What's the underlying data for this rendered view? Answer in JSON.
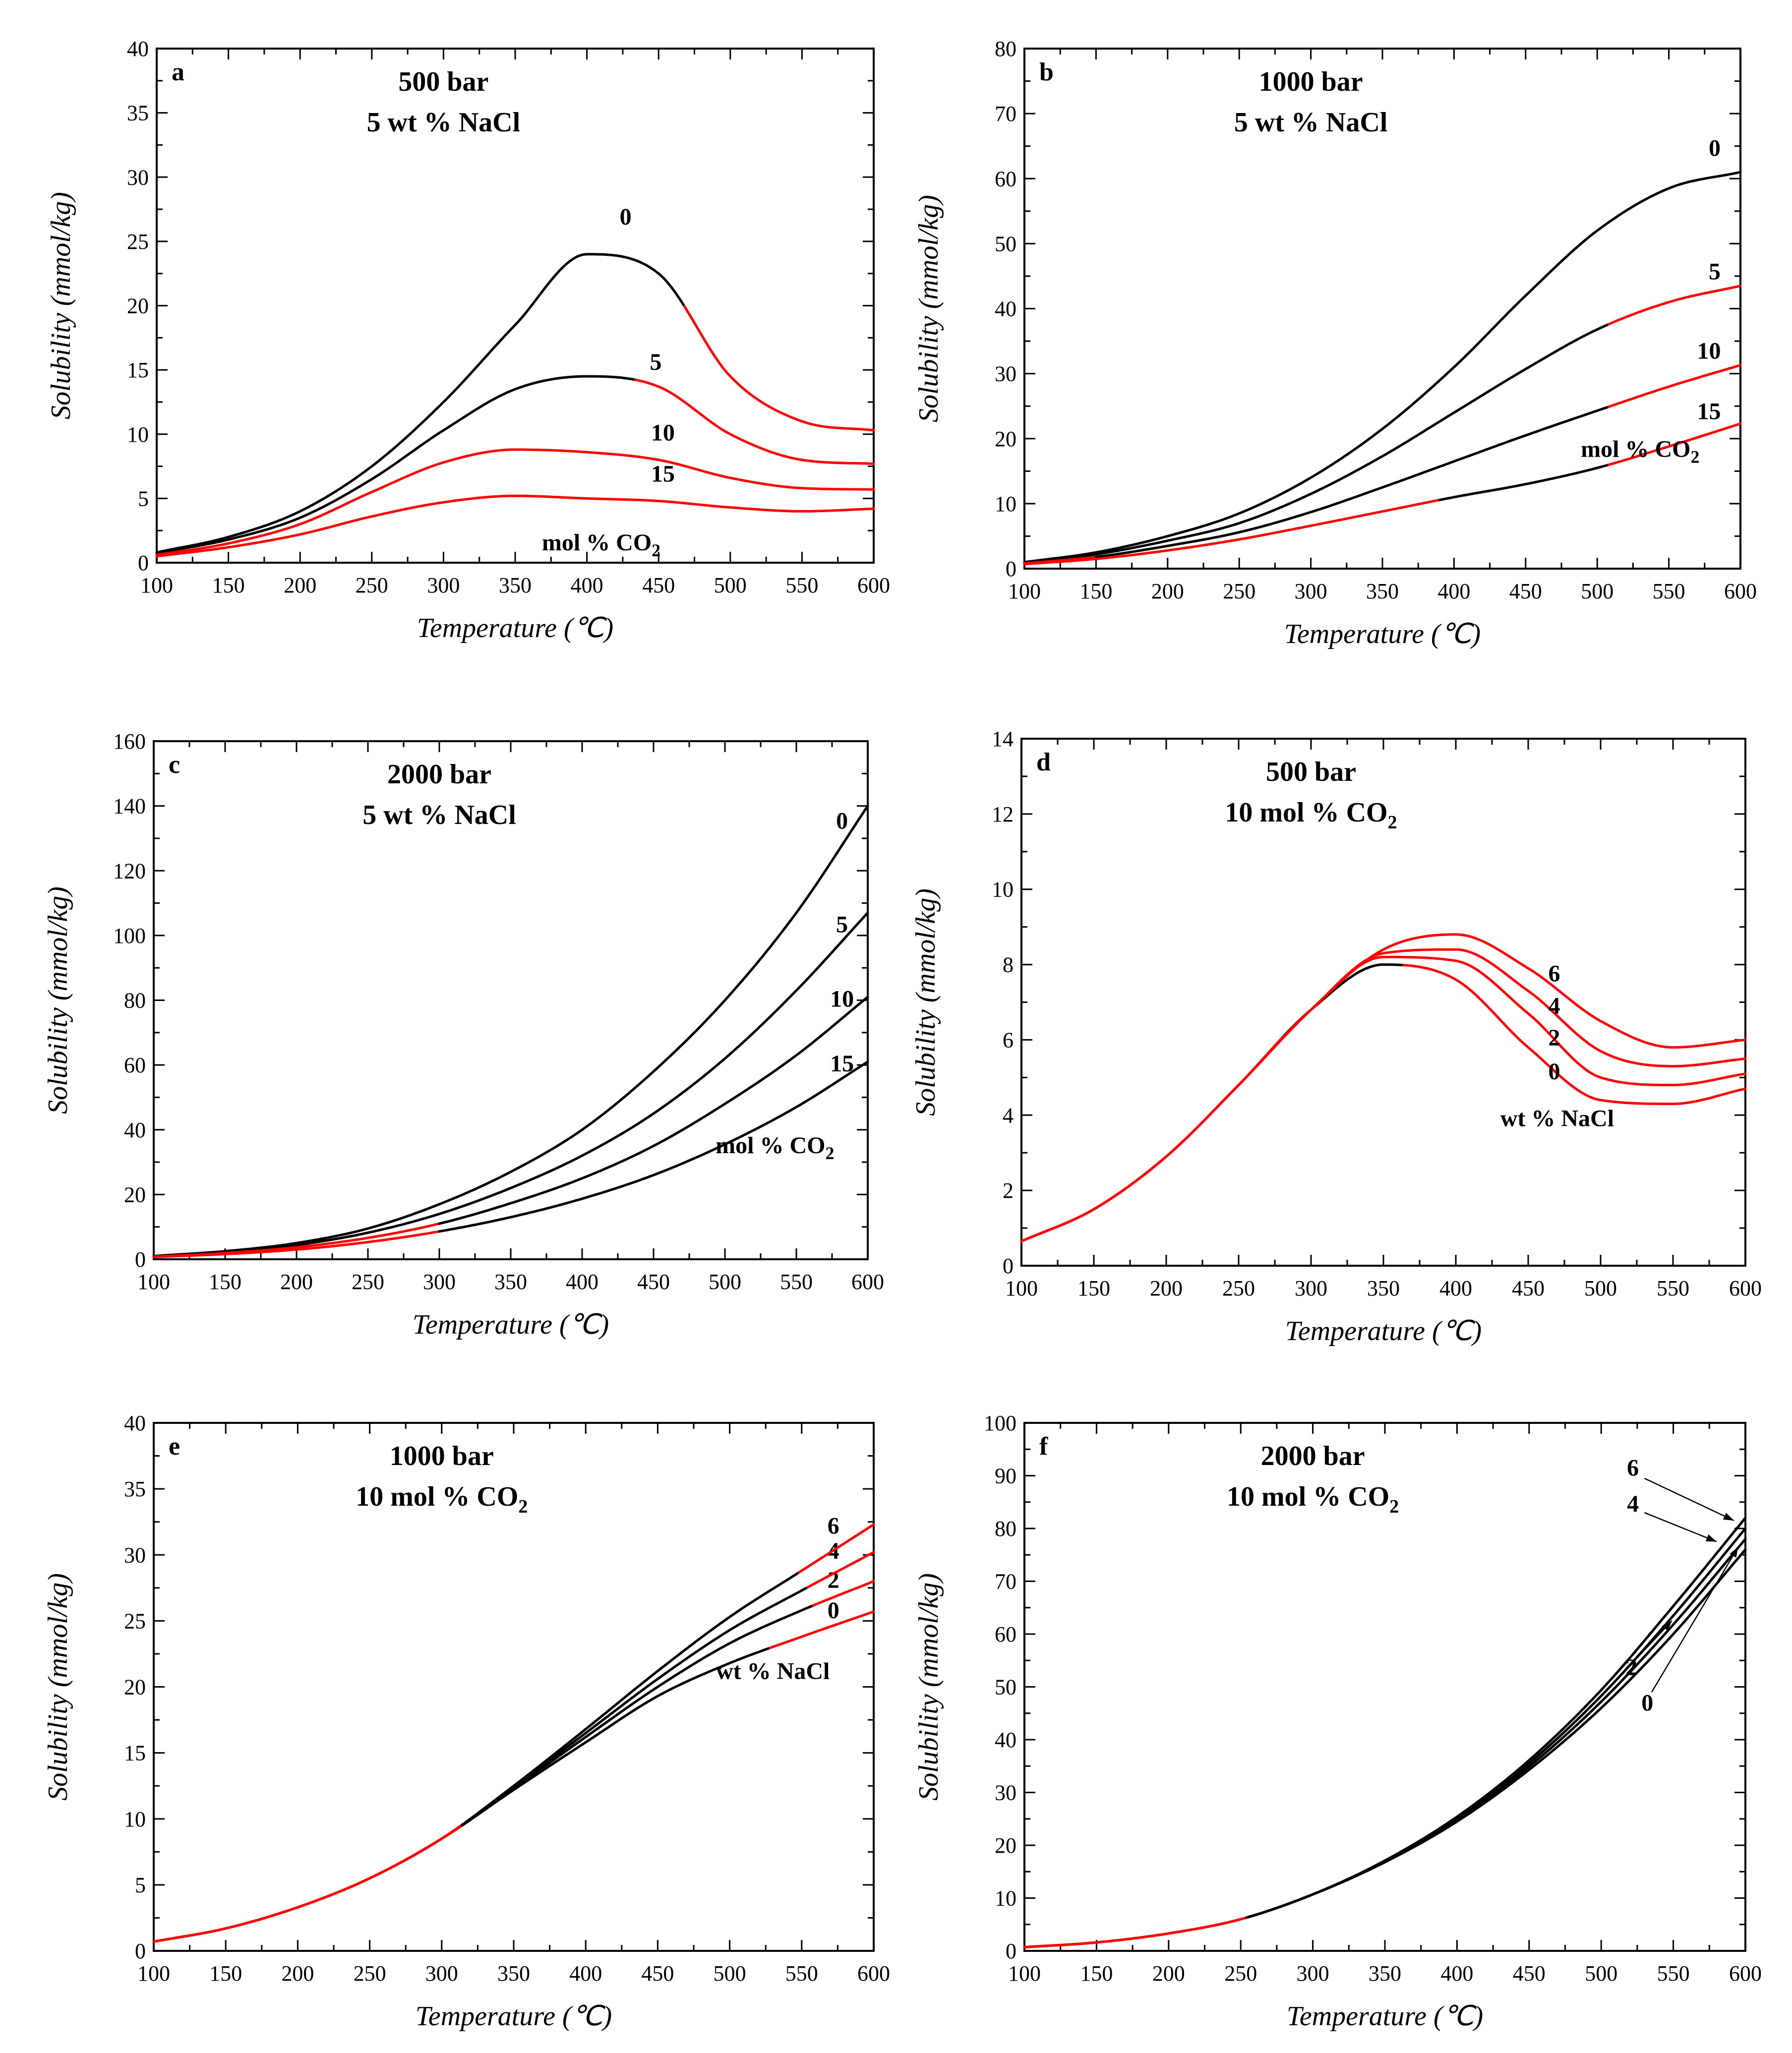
{
  "colors": {
    "black_segment": "#000000",
    "red_segment": "#ff0000"
  },
  "chart_data": [
    {
      "panel": "a",
      "type": "line",
      "title_lines": [
        "500 bar",
        "5 wt % NaCl"
      ],
      "xlabel": "Temperature (℃)",
      "ylabel": "Solubility (mmol/kg)",
      "xlim": [
        100,
        600
      ],
      "ylim": [
        0,
        40
      ],
      "xticks": [
        100,
        150,
        200,
        250,
        300,
        350,
        400,
        450,
        500,
        550,
        600
      ],
      "yticks": [
        0,
        5,
        10,
        15,
        20,
        25,
        30,
        35,
        40
      ],
      "legend_text": "mol % CO2",
      "x": [
        100,
        150,
        200,
        250,
        300,
        350,
        400,
        450,
        500,
        550,
        600
      ],
      "series": [
        {
          "name": "0",
          "values": [
            0.8,
            2.0,
            4.0,
            7.5,
            12.5,
            18.5,
            24.0,
            22.5,
            14.5,
            11.0,
            10.3
          ],
          "label_at": [
            427,
            26.3
          ],
          "red_x_ranges": [
            [
              470,
              600
            ]
          ]
        },
        {
          "name": "5",
          "values": [
            0.75,
            1.8,
            3.5,
            6.5,
            10.3,
            13.5,
            14.5,
            13.7,
            10.0,
            8.0,
            7.7
          ],
          "label_at": [
            448,
            15.0
          ],
          "red_x_ranges": [
            [
              435,
              600
            ]
          ]
        },
        {
          "name": "10",
          "values": [
            0.6,
            1.5,
            3.0,
            5.5,
            7.8,
            8.8,
            8.6,
            8.0,
            6.6,
            5.8,
            5.7
          ],
          "label_at": [
            453,
            9.5
          ],
          "red_x_ranges": [
            [
              100,
              600
            ]
          ]
        },
        {
          "name": "15",
          "values": [
            0.5,
            1.2,
            2.2,
            3.6,
            4.7,
            5.2,
            5.0,
            4.8,
            4.3,
            4.0,
            4.2
          ],
          "label_at": [
            453,
            6.3
          ],
          "red_x_ranges": [
            [
              100,
              600
            ]
          ]
        }
      ]
    },
    {
      "panel": "b",
      "type": "line",
      "title_lines": [
        "1000 bar",
        "5 wt % NaCl"
      ],
      "xlabel": "Temperature (℃)",
      "ylabel": "Solubility (mmol/kg)",
      "xlim": [
        100,
        600
      ],
      "ylim": [
        0,
        80
      ],
      "xticks": [
        100,
        150,
        200,
        250,
        300,
        350,
        400,
        450,
        500,
        550,
        600
      ],
      "yticks": [
        0,
        10,
        20,
        30,
        40,
        50,
        60,
        70,
        80
      ],
      "legend_text": "mol % CO2",
      "x": [
        100,
        150,
        200,
        250,
        300,
        350,
        400,
        450,
        500,
        550,
        600
      ],
      "series": [
        {
          "name": "0",
          "values": [
            1.0,
            2.5,
            5.0,
            8.5,
            14.0,
            21.5,
            31.0,
            42.0,
            52.0,
            58.5,
            61.0
          ],
          "label_at": [
            582,
            63.5
          ],
          "red_x_ranges": []
        },
        {
          "name": "5",
          "values": [
            0.9,
            2.2,
            4.3,
            7.0,
            11.5,
            17.3,
            24.0,
            30.7,
            36.8,
            41.0,
            43.5
          ],
          "label_at": [
            582,
            44.5
          ],
          "red_x_ranges": [
            [
              510,
              600
            ]
          ]
        },
        {
          "name": "10",
          "values": [
            0.8,
            1.8,
            3.5,
            5.6,
            8.7,
            12.5,
            16.5,
            20.5,
            24.3,
            28.0,
            31.3
          ],
          "label_at": [
            578,
            32.3
          ],
          "red_x_ranges": [
            [
              100,
              150
            ],
            [
              510,
              600
            ]
          ]
        },
        {
          "name": "15",
          "values": [
            0.7,
            1.5,
            2.8,
            4.5,
            6.6,
            8.8,
            11.0,
            13.0,
            15.5,
            18.8,
            22.3
          ],
          "label_at": [
            578,
            23.0
          ],
          "red_x_ranges": [
            [
              100,
              390
            ],
            [
              510,
              600
            ]
          ]
        }
      ]
    },
    {
      "panel": "c",
      "type": "line",
      "title_lines": [
        "2000 bar",
        "5 wt % NaCl"
      ],
      "xlabel": "Temperature (℃)",
      "ylabel": "Solubility (mmol/kg)",
      "xlim": [
        100,
        600
      ],
      "ylim": [
        0,
        160
      ],
      "xticks": [
        100,
        150,
        200,
        250,
        300,
        350,
        400,
        450,
        500,
        550,
        600
      ],
      "yticks": [
        0,
        20,
        40,
        60,
        80,
        100,
        120,
        140,
        160
      ],
      "legend_text": "mol % CO2",
      "x": [
        100,
        150,
        200,
        250,
        300,
        350,
        400,
        450,
        500,
        550,
        600
      ],
      "series": [
        {
          "name": "0",
          "values": [
            1.0,
            2.5,
            5.0,
            9.5,
            17.0,
            27.0,
            40.0,
            58.0,
            80.0,
            107.0,
            140.0
          ],
          "label_at": [
            582,
            133
          ],
          "red_x_ranges": []
        },
        {
          "name": "5",
          "values": [
            0.9,
            2.2,
            4.4,
            8.2,
            14.0,
            22.0,
            32.0,
            45.0,
            62.0,
            83.0,
            107.0
          ],
          "label_at": [
            582,
            101
          ],
          "red_x_ranges": []
        },
        {
          "name": "10",
          "values": [
            0.8,
            1.9,
            3.7,
            6.6,
            11.0,
            17.3,
            25.0,
            35.0,
            48.0,
            63.0,
            81.0
          ],
          "label_at": [
            582,
            78
          ],
          "red_x_ranges": [
            [
              100,
              300
            ]
          ]
        },
        {
          "name": "15",
          "values": [
            0.7,
            1.6,
            3.0,
            5.3,
            8.6,
            13.0,
            18.7,
            26.0,
            35.5,
            47.0,
            61.0
          ],
          "label_at": [
            582,
            58
          ],
          "red_x_ranges": [
            [
              100,
              300
            ]
          ]
        }
      ]
    },
    {
      "panel": "d",
      "type": "line",
      "title_lines": [
        "500 bar",
        "10 mol % CO2"
      ],
      "xlabel": "Temperature (℃)",
      "ylabel": "Solubility (mmol/kg)",
      "xlim": [
        100,
        600
      ],
      "ylim": [
        0,
        14
      ],
      "xticks": [
        100,
        150,
        200,
        250,
        300,
        350,
        400,
        450,
        500,
        550,
        600
      ],
      "yticks": [
        0,
        2,
        4,
        6,
        8,
        10,
        12,
        14
      ],
      "legend_text": "wt % NaCl",
      "x": [
        100,
        150,
        200,
        250,
        300,
        350,
        400,
        450,
        500,
        550,
        600
      ],
      "series": [
        {
          "name": "0",
          "values": [
            0.65,
            1.5,
            2.9,
            4.8,
            6.8,
            8.0,
            7.6,
            5.8,
            4.4,
            4.3,
            4.7
          ],
          "label_at": [
            468,
            4.95
          ],
          "red_x_ranges": [
            [
              100,
              280
            ],
            [
              365,
              600
            ]
          ]
        },
        {
          "name": "2",
          "values": [
            0.65,
            1.5,
            2.9,
            4.8,
            6.8,
            8.2,
            8.1,
            6.7,
            5.0,
            4.8,
            5.1
          ],
          "label_at": [
            468,
            5.85
          ],
          "red_x_ranges": [
            [
              100,
              600
            ]
          ]
        },
        {
          "name": "4",
          "values": [
            0.65,
            1.5,
            2.9,
            4.8,
            6.8,
            8.3,
            8.4,
            7.3,
            5.7,
            5.3,
            5.5
          ],
          "label_at": [
            468,
            6.7
          ],
          "red_x_ranges": [
            [
              100,
              600
            ]
          ]
        },
        {
          "name": "6",
          "values": [
            0.65,
            1.5,
            2.9,
            4.8,
            6.8,
            8.4,
            8.8,
            7.9,
            6.5,
            5.8,
            6.0
          ],
          "label_at": [
            468,
            7.55
          ],
          "red_x_ranges": [
            [
              100,
              600
            ]
          ]
        }
      ]
    },
    {
      "panel": "e",
      "type": "line",
      "title_lines": [
        "1000 bar",
        "10 mol % CO2"
      ],
      "xlabel": "Temperature (℃)",
      "ylabel": "Solubility (mmol/kg)",
      "xlim": [
        100,
        600
      ],
      "ylim": [
        0,
        40
      ],
      "xticks": [
        100,
        150,
        200,
        250,
        300,
        350,
        400,
        450,
        500,
        550,
        600
      ],
      "yticks": [
        0,
        5,
        10,
        15,
        20,
        25,
        30,
        35,
        40
      ],
      "legend_text": "wt % NaCl",
      "x": [
        100,
        150,
        200,
        250,
        300,
        350,
        400,
        450,
        500,
        550,
        600
      ],
      "series": [
        {
          "name": "0",
          "values": [
            0.7,
            1.7,
            3.3,
            5.5,
            8.5,
            12.2,
            15.8,
            19.3,
            21.8,
            23.8,
            25.7
          ],
          "label_at": [
            572,
            25.2
          ],
          "red_x_ranges": [
            [
              100,
              315
            ],
            [
              530,
              600
            ]
          ]
        },
        {
          "name": "2",
          "values": [
            0.7,
            1.7,
            3.3,
            5.5,
            8.5,
            12.3,
            16.2,
            20.0,
            23.3,
            25.8,
            28.0
          ],
          "label_at": [
            572,
            27.5
          ],
          "red_x_ranges": [
            [
              100,
              315
            ],
            [
              560,
              600
            ]
          ]
        },
        {
          "name": "4",
          "values": [
            0.7,
            1.7,
            3.3,
            5.5,
            8.5,
            12.4,
            16.5,
            20.6,
            24.3,
            27.3,
            30.2
          ],
          "label_at": [
            572,
            29.7
          ],
          "red_x_ranges": [
            [
              100,
              315
            ],
            [
              555,
              600
            ]
          ]
        },
        {
          "name": "6",
          "values": [
            0.7,
            1.7,
            3.3,
            5.5,
            8.5,
            12.5,
            16.8,
            21.2,
            25.3,
            28.8,
            32.3
          ],
          "label_at": [
            572,
            31.6
          ],
          "red_x_ranges": [
            [
              100,
              315
            ],
            [
              550,
              600
            ]
          ]
        }
      ]
    },
    {
      "panel": "f",
      "type": "line",
      "title_lines": [
        "2000 bar",
        "10 mol % CO2"
      ],
      "xlabel": "Temperature (℃)",
      "ylabel": "Solubility (mmol/kg)",
      "xlim": [
        100,
        600
      ],
      "ylim": [
        0,
        100
      ],
      "xticks": [
        100,
        150,
        200,
        250,
        300,
        350,
        400,
        450,
        500,
        550,
        600
      ],
      "yticks": [
        0,
        10,
        20,
        30,
        40,
        50,
        60,
        70,
        80,
        90,
        100
      ],
      "legend_text": "",
      "x": [
        100,
        150,
        200,
        250,
        300,
        350,
        400,
        450,
        500,
        550,
        600
      ],
      "series": [
        {
          "name": "0",
          "values": [
            0.7,
            1.6,
            3.3,
            6.0,
            10.7,
            16.8,
            24.5,
            34.3,
            46.0,
            60.0,
            76.0
          ],
          "label_at": [
            532,
            45.5
          ],
          "arrow_from": [
            535,
            49
          ],
          "arrow_to": [
            595,
            76.5
          ],
          "red_x_ranges": [
            [
              100,
              255
            ]
          ]
        },
        {
          "name": "2",
          "values": [
            0.7,
            1.6,
            3.3,
            6.0,
            10.7,
            16.9,
            24.8,
            34.9,
            47.2,
            61.8,
            78.0
          ],
          "label_at": [
            521,
            52.2
          ],
          "arrow_from": [
            525,
            55.5
          ],
          "arrow_to": [
            549,
            62.5
          ],
          "red_x_ranges": [
            [
              100,
              255
            ]
          ]
        },
        {
          "name": "4",
          "values": [
            0.7,
            1.6,
            3.3,
            6.0,
            10.7,
            17.0,
            25.1,
            35.5,
            48.3,
            63.5,
            80.0
          ],
          "label_at": [
            522,
            83.2
          ],
          "arrow_from": [
            530,
            83
          ],
          "arrow_to": [
            580,
            77.5
          ],
          "red_x_ranges": [
            [
              100,
              255
            ]
          ]
        },
        {
          "name": "6",
          "values": [
            0.7,
            1.6,
            3.3,
            6.0,
            10.7,
            17.1,
            25.4,
            36.1,
            49.4,
            65.3,
            82.0
          ],
          "label_at": [
            522,
            90.0
          ],
          "arrow_from": [
            530,
            89.5
          ],
          "arrow_to": [
            592,
            81.5
          ],
          "red_x_ranges": [
            [
              100,
              255
            ]
          ]
        }
      ]
    }
  ]
}
